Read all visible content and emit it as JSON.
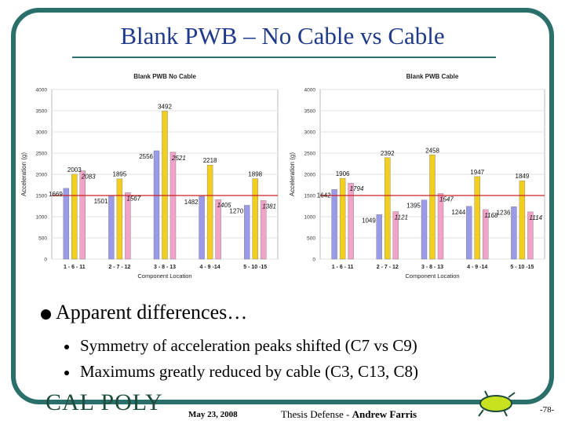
{
  "slide": {
    "title": "Blank PWB – No Cable vs Cable",
    "bullet": "Apparent differences…",
    "sub1": "Symmetry of acceleration peaks shifted (C7 vs C9)",
    "sub2": "Maximums greatly reduced by cable (C3, C13, C8)",
    "logo": "CAL POLY",
    "date": "May 23, 2008",
    "footer_prefix": "Thesis Defense - ",
    "footer_author": "Andrew Farris",
    "page": "-78-"
  },
  "colors": {
    "frame": "#2b6f6b",
    "title": "#1f3a8a",
    "series": [
      "#9a9ae8",
      "#f2cf1f",
      "#f2a3c8"
    ],
    "reference_line": "#cc2222"
  },
  "chart_data": [
    {
      "type": "bar",
      "title": "Blank PWB No Cable",
      "xlabel": "Component Location",
      "ylabel": "Acceleration (g)",
      "ylim": [
        0,
        4000
      ],
      "yticks": [
        0,
        500,
        1000,
        1500,
        2000,
        2500,
        3000,
        3500,
        4000
      ],
      "categories": [
        "1 - 6 - 11",
        "2 - 7 - 12",
        "3 - 8 - 13",
        "4 - 9 -14",
        "5 - 10 -15"
      ],
      "series": [
        {
          "values": [
            1669,
            1501,
            2556,
            1482,
            1270
          ]
        },
        {
          "values": [
            2003,
            1895,
            3492,
            2218,
            1898
          ]
        },
        {
          "values": [
            2083,
            1567,
            2521,
            1405,
            1381
          ]
        }
      ],
      "reference_line": 1500,
      "grid": true
    },
    {
      "type": "bar",
      "title": "Blank PWB Cable",
      "xlabel": "Component Location",
      "ylabel": "Acceleration (g)",
      "ylim": [
        0,
        4000
      ],
      "yticks": [
        0,
        500,
        1000,
        1500,
        2000,
        2500,
        3000,
        3500,
        4000
      ],
      "categories": [
        "1 - 6 - 11",
        "2 - 7 - 12",
        "3 - 8 - 13",
        "4 - 9 -14",
        "5 - 10 -15"
      ],
      "series": [
        {
          "values": [
            1642,
            1049,
            1395,
            1244,
            1236
          ]
        },
        {
          "values": [
            1906,
            2392,
            2458,
            1947,
            1849
          ]
        },
        {
          "values": [
            1794,
            1121,
            1547,
            1168,
            1114
          ]
        }
      ],
      "reference_line": 1500,
      "grid": true
    }
  ]
}
